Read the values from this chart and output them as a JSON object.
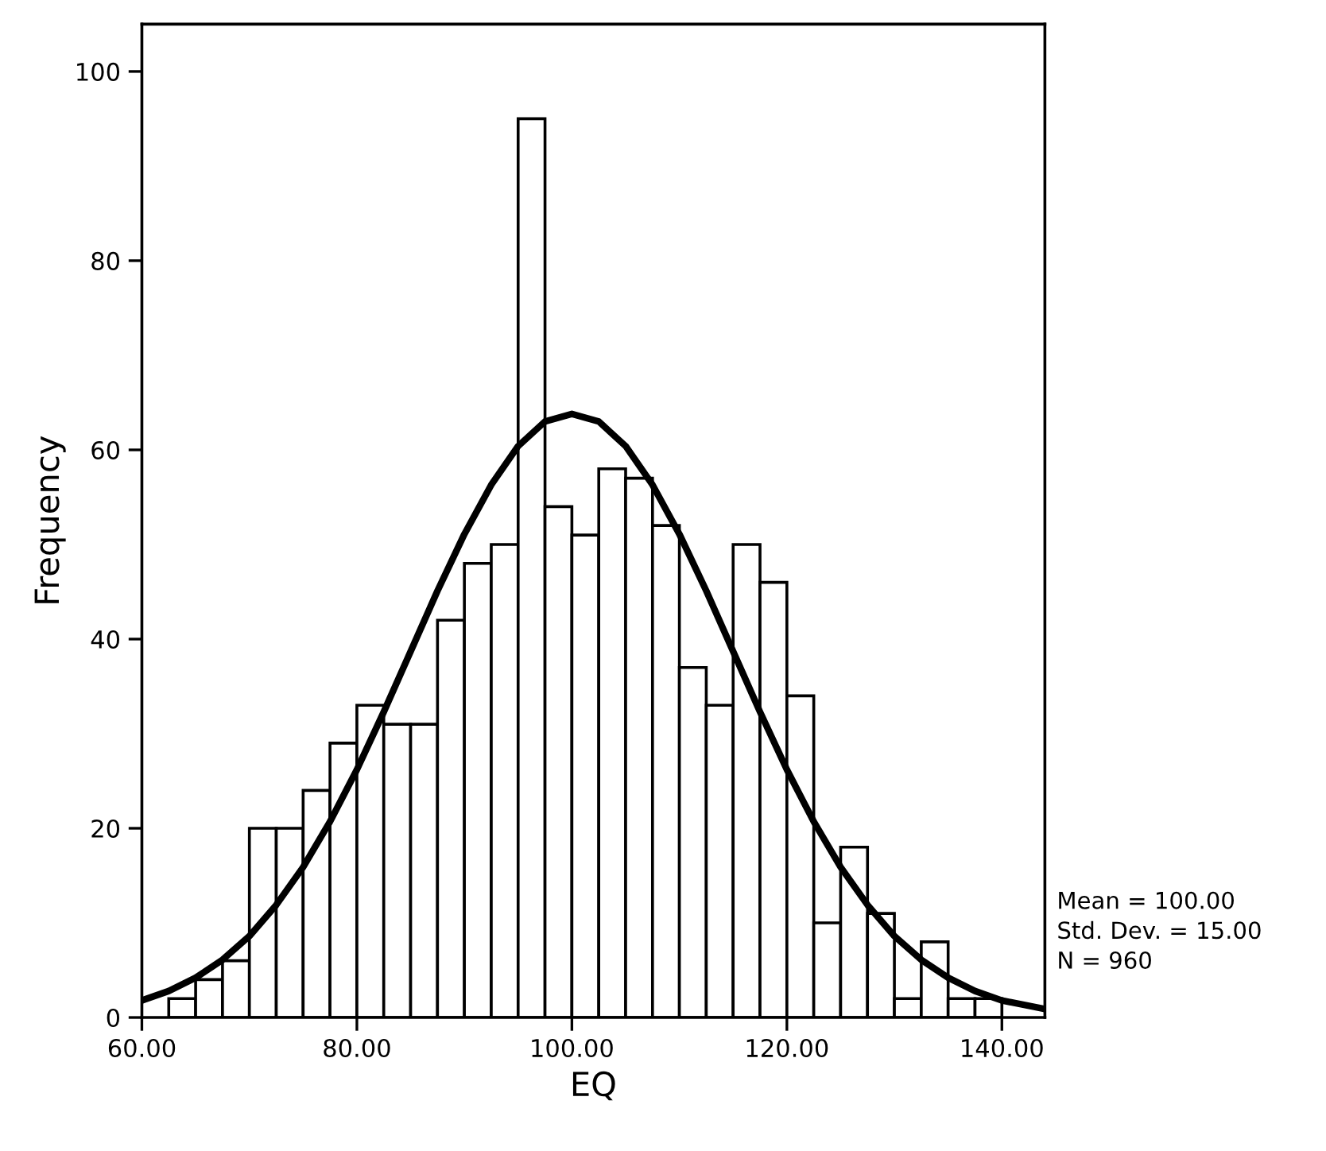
{
  "chart_data": {
    "type": "histogram",
    "xlabel": "EQ",
    "ylabel": "Frequency",
    "bins": [
      62.5,
      65,
      67.5,
      70,
      72.5,
      75,
      77.5,
      80,
      82.5,
      85,
      87.5,
      90,
      92.5,
      95,
      97.5,
      100,
      102.5,
      105,
      107.5,
      110,
      112.5,
      115,
      117.5,
      120,
      122.5,
      125,
      127.5,
      130,
      132.5,
      135,
      137.5,
      140
    ],
    "values": [
      2,
      4,
      6,
      20,
      20,
      24,
      29,
      33,
      31,
      31,
      42,
      48,
      50,
      95,
      54,
      51,
      58,
      57,
      52,
      37,
      33,
      50,
      46,
      34,
      10,
      18,
      11,
      2,
      8,
      2,
      2
    ],
    "color": "#ffffff",
    "series": [
      {
        "type": "line",
        "color": "#000000",
        "x": [
          60,
          62.5,
          65,
          67.5,
          70,
          72.5,
          75,
          77.5,
          80,
          82.5,
          85,
          87.5,
          90,
          92.5,
          95,
          97.5,
          100,
          102.5,
          105,
          107.5,
          110,
          112.5,
          115,
          117.5,
          120,
          122.5,
          125,
          127.5,
          130,
          132.5,
          135,
          137.5,
          140,
          144
        ],
        "values": [
          1.8,
          2.8,
          4.2,
          6.1,
          8.6,
          11.9,
          15.9,
          20.7,
          26.2,
          32.3,
          38.7,
          45.1,
          51.1,
          56.3,
          60.4,
          63.0,
          63.8,
          63.0,
          60.4,
          56.3,
          51.1,
          45.1,
          38.7,
          32.3,
          26.2,
          20.7,
          15.9,
          11.9,
          8.6,
          6.1,
          4.2,
          2.8,
          1.8,
          0.9
        ]
      }
    ],
    "xlim": [
      60,
      144
    ],
    "ylim": [
      0,
      105
    ],
    "xticks": [
      {
        "value": 60,
        "label": "60.00"
      },
      {
        "value": 80,
        "label": "80.00"
      },
      {
        "value": 100,
        "label": "100.00"
      },
      {
        "value": 120,
        "label": "120.00"
      },
      {
        "value": 140,
        "label": "140.00"
      }
    ],
    "yticks": [
      0,
      20,
      40,
      60,
      80,
      100
    ],
    "grid": false,
    "annotations": [
      "Mean = 100.00",
      "Std. Dev. = 15.00",
      "N = 960"
    ]
  }
}
